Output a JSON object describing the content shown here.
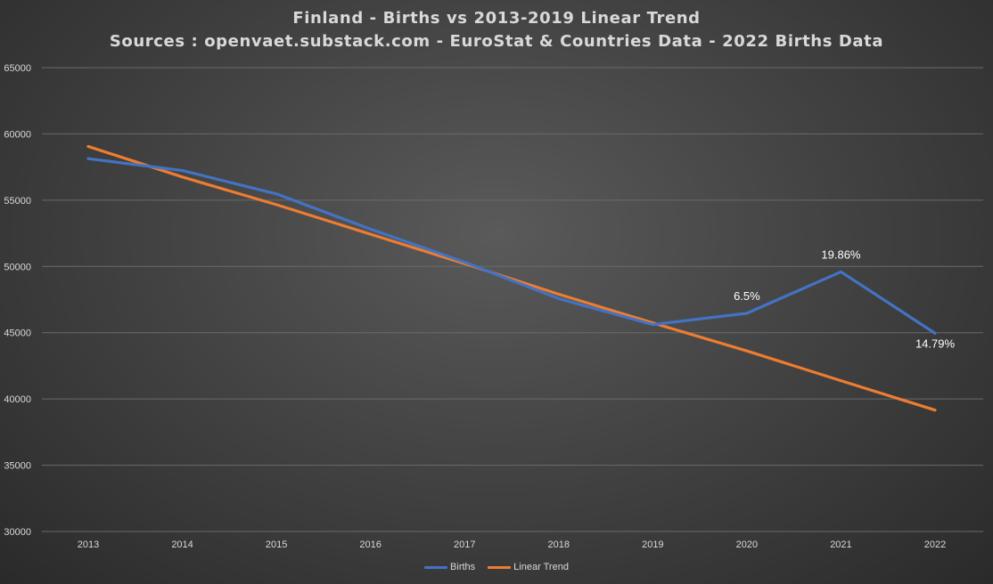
{
  "chart_data": {
    "type": "line",
    "title": "Finland - Births vs 2013-2019 Linear Trend",
    "subtitle": "Sources : openvaet.substack.com - EuroStat & Countries Data - 2022 Births Data",
    "categories": [
      "2013",
      "2014",
      "2015",
      "2016",
      "2017",
      "2018",
      "2019",
      "2020",
      "2021",
      "2022"
    ],
    "ylim": [
      30000,
      65000
    ],
    "yticks": [
      "30000",
      "35000",
      "40000",
      "45000",
      "50000",
      "55000",
      "60000",
      "65000"
    ],
    "grid": true,
    "legend_position": "bottom",
    "series": [
      {
        "name": "Births",
        "color": "#4472c4",
        "values": [
          58134,
          57232,
          55472,
          52814,
          50321,
          47577,
          45613,
          46463,
          49594,
          44951
        ]
      },
      {
        "name": "Linear Trend",
        "color": "#ed7d31",
        "values": [
          59052,
          56750,
          54659,
          52434,
          50217,
          47905,
          45738,
          43626,
          41380,
          39157
        ]
      }
    ],
    "annotations": [
      {
        "series": 0,
        "index": 7,
        "text": "6.5%",
        "placement": "above"
      },
      {
        "series": 0,
        "index": 8,
        "text": "19.86%",
        "placement": "above"
      },
      {
        "series": 0,
        "index": 9,
        "text": "14.79%",
        "placement": "below"
      }
    ]
  }
}
